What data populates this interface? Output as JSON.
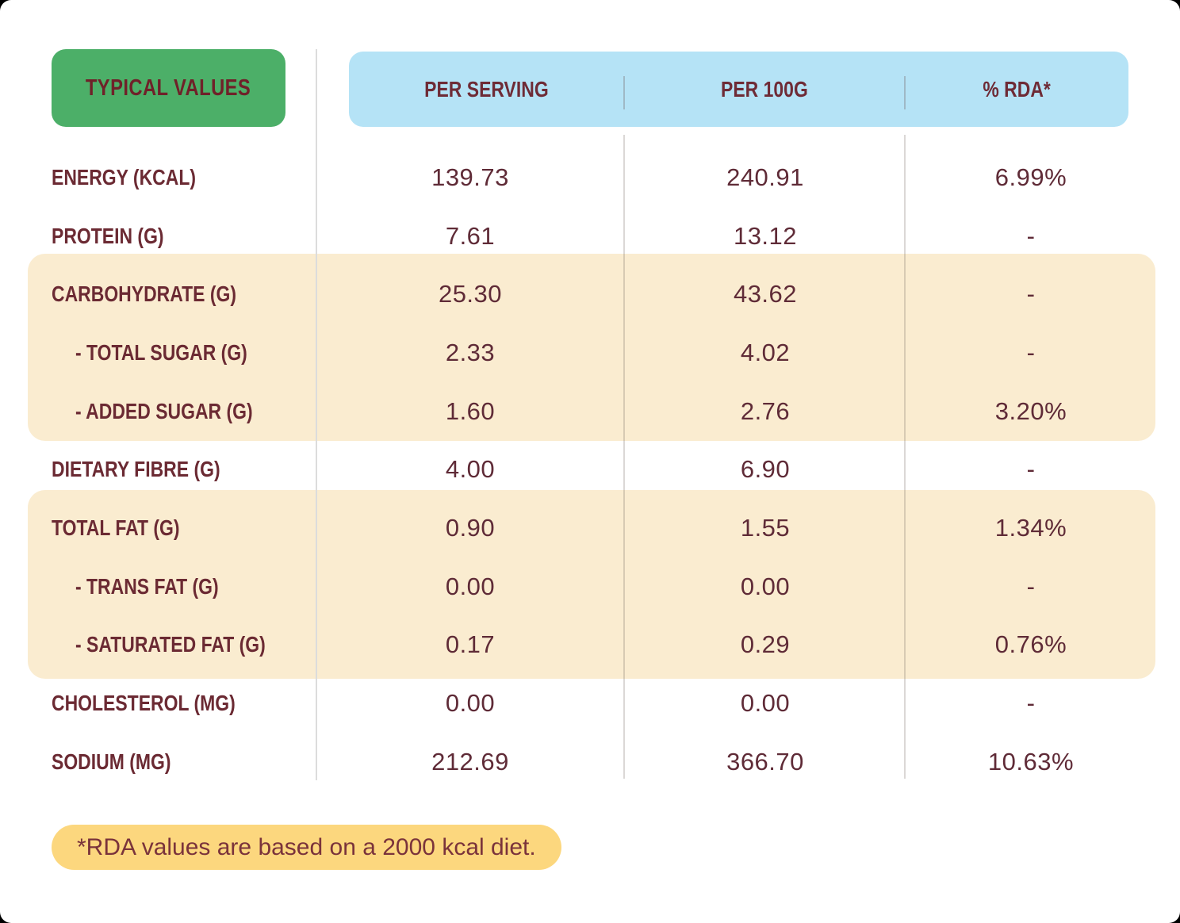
{
  "table": {
    "corner_label": "TYPICAL VALUES",
    "columns": [
      "PER SERVING",
      "PER 100G",
      "% RDA*"
    ],
    "rows": [
      {
        "label": "ENERGY (KCAL)",
        "per_serving": "139.73",
        "per_100g": "240.91",
        "rda": "6.99%",
        "indent": false,
        "highlight": false
      },
      {
        "label": "PROTEIN (G)",
        "per_serving": "7.61",
        "per_100g": "13.12",
        "rda": "-",
        "indent": false,
        "highlight": false
      },
      {
        "label": "CARBOHYDRATE (G)",
        "per_serving": "25.30",
        "per_100g": "43.62",
        "rda": "-",
        "indent": false,
        "highlight": true
      },
      {
        "label": "- TOTAL SUGAR (G)",
        "per_serving": "2.33",
        "per_100g": "4.02",
        "rda": "-",
        "indent": true,
        "highlight": true
      },
      {
        "label": "- ADDED SUGAR (G)",
        "per_serving": "1.60",
        "per_100g": "2.76",
        "rda": "3.20%",
        "indent": true,
        "highlight": true
      },
      {
        "label": "DIETARY FIBRE (G)",
        "per_serving": "4.00",
        "per_100g": "6.90",
        "rda": "-",
        "indent": false,
        "highlight": false
      },
      {
        "label": "TOTAL FAT (G)",
        "per_serving": "0.90",
        "per_100g": "1.55",
        "rda": "1.34%",
        "indent": false,
        "highlight": true
      },
      {
        "label": "- TRANS FAT (G)",
        "per_serving": "0.00",
        "per_100g": "0.00",
        "rda": "-",
        "indent": true,
        "highlight": true
      },
      {
        "label": "- SATURATED FAT (G)",
        "per_serving": "0.17",
        "per_100g": "0.29",
        "rda": "0.76%",
        "indent": true,
        "highlight": true
      },
      {
        "label": "CHOLESTEROL (MG)",
        "per_serving": "0.00",
        "per_100g": "0.00",
        "rda": "-",
        "indent": false,
        "highlight": false
      },
      {
        "label": "SODIUM (MG)",
        "per_serving": "212.69",
        "per_100g": "366.70",
        "rda": "10.63%",
        "indent": false,
        "highlight": false
      }
    ]
  },
  "footnote": "*RDA values are based on a 2000 kcal diet.",
  "colors": {
    "green": "#4caf68",
    "blue": "#b5e3f6",
    "cream": "#faecd0",
    "yellow": "#fcd77e",
    "maroon": "#6b2a33"
  }
}
